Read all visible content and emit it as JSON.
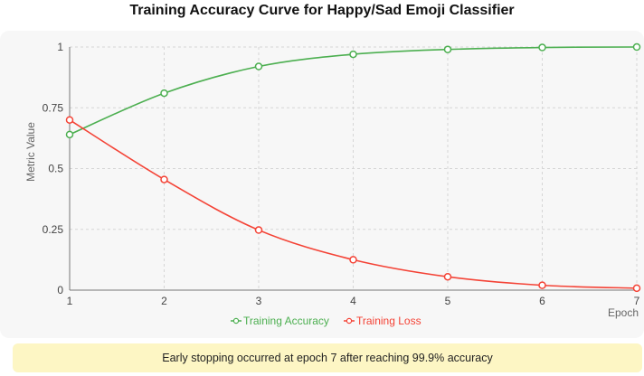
{
  "chart_data": {
    "type": "line",
    "title": "Training Accuracy Curve for Happy/Sad Emoji Classifier",
    "xlabel": "Epoch",
    "ylabel": "Metric Value",
    "x": [
      1,
      2,
      3,
      4,
      5,
      6,
      7
    ],
    "xlim": [
      1,
      7
    ],
    "ylim": [
      0,
      1
    ],
    "x_ticks": [
      "1",
      "2",
      "3",
      "4",
      "5",
      "6",
      "7"
    ],
    "y_ticks": [
      "0",
      "0.25",
      "0.5",
      "0.75",
      "1"
    ],
    "grid": true,
    "legend_position": "bottom",
    "series": [
      {
        "name": "Training Accuracy",
        "color": "#4caf50",
        "values": [
          0.64,
          0.81,
          0.92,
          0.97,
          0.99,
          0.998,
          1.0
        ]
      },
      {
        "name": "Training Loss",
        "color": "#f44336",
        "values": [
          0.7,
          0.455,
          0.247,
          0.125,
          0.055,
          0.02,
          0.008
        ]
      }
    ]
  },
  "note": "Early stopping occurred at epoch 7 after reaching 99.9% accuracy"
}
